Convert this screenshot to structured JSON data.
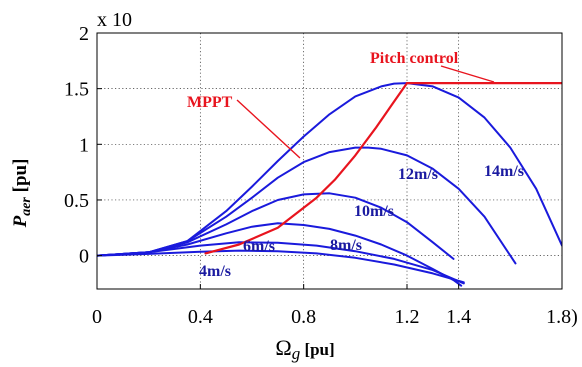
{
  "chart_data": {
    "type": "line",
    "title": "",
    "multiplier": "x 10",
    "xlabel": {
      "main": "Ω",
      "sub": "g",
      "unit": " [pu]"
    },
    "ylabel": {
      "main": "P",
      "sub": "aer",
      "unit": " [pu]"
    },
    "xlim": [
      0,
      1.8
    ],
    "ylim": [
      -0.3,
      2
    ],
    "xticks": [
      "0",
      "0.4",
      "0.8",
      "1.2",
      "1.4",
      "1.8)"
    ],
    "xtick_values": [
      0,
      0.4,
      0.8,
      1.2,
      1.4,
      1.8
    ],
    "yticks": [
      "0",
      "0.5",
      "1",
      "1.5",
      "2"
    ],
    "ytick_values": [
      0,
      0.5,
      1,
      1.5,
      2
    ],
    "grid": true,
    "colors": {
      "turbine": "#1a1adc",
      "mppt": "#e8141e",
      "pitch": "#e8141e",
      "label_blue": "#1a1aa0",
      "label_red": "#e8141e"
    },
    "series": [
      {
        "name": "4m/s",
        "x": [
          0,
          0.2,
          0.4,
          0.55,
          0.7,
          0.85,
          1.0,
          1.15,
          1.3,
          1.42
        ],
        "y": [
          0,
          0.015,
          0.035,
          0.045,
          0.04,
          0.02,
          -0.02,
          -0.08,
          -0.16,
          -0.24
        ]
      },
      {
        "name": "6m/s",
        "x": [
          0,
          0.2,
          0.4,
          0.55,
          0.7,
          0.85,
          1.0,
          1.15,
          1.3,
          1.42
        ],
        "y": [
          0,
          0.03,
          0.09,
          0.12,
          0.115,
          0.09,
          0.04,
          -0.03,
          -0.13,
          -0.25
        ]
      },
      {
        "name": "8m/s",
        "x": [
          0,
          0.2,
          0.35,
          0.5,
          0.6,
          0.7,
          0.8,
          0.9,
          1.0,
          1.1,
          1.2,
          1.3,
          1.38,
          1.41
        ],
        "y": [
          0,
          0.03,
          0.1,
          0.2,
          0.26,
          0.29,
          0.275,
          0.24,
          0.18,
          0.1,
          0.0,
          -0.12,
          -0.22,
          -0.27
        ]
      },
      {
        "name": "10m/s",
        "x": [
          0,
          0.2,
          0.35,
          0.5,
          0.6,
          0.7,
          0.8,
          0.9,
          1.0,
          1.1,
          1.2,
          1.3,
          1.38
        ],
        "y": [
          0,
          0.03,
          0.12,
          0.28,
          0.4,
          0.5,
          0.55,
          0.56,
          0.52,
          0.43,
          0.3,
          0.12,
          -0.03
        ]
      },
      {
        "name": "12m/s",
        "x": [
          0,
          0.2,
          0.35,
          0.5,
          0.6,
          0.7,
          0.8,
          0.9,
          1.0,
          1.05,
          1.1,
          1.2,
          1.3,
          1.4,
          1.5,
          1.6,
          1.62
        ],
        "y": [
          0,
          0.03,
          0.13,
          0.35,
          0.52,
          0.7,
          0.84,
          0.93,
          0.97,
          0.97,
          0.96,
          0.9,
          0.78,
          0.6,
          0.35,
          0.0,
          -0.07
        ]
      },
      {
        "name": "14m/s",
        "x": [
          0,
          0.2,
          0.35,
          0.5,
          0.6,
          0.7,
          0.8,
          0.9,
          1.0,
          1.1,
          1.15,
          1.2,
          1.3,
          1.4,
          1.5,
          1.6,
          1.7,
          1.8
        ],
        "y": [
          0,
          0.03,
          0.13,
          0.4,
          0.62,
          0.85,
          1.07,
          1.27,
          1.43,
          1.52,
          1.545,
          1.55,
          1.52,
          1.42,
          1.24,
          0.97,
          0.6,
          0.09
        ]
      },
      {
        "name": "MPPT",
        "x": [
          0.42,
          0.55,
          0.7,
          0.85,
          0.92,
          1.0,
          1.08,
          1.14,
          1.2
        ],
        "y": [
          0.02,
          0.1,
          0.25,
          0.52,
          0.68,
          0.9,
          1.15,
          1.35,
          1.55
        ]
      },
      {
        "name": "Pitch control",
        "x": [
          1.2,
          1.8
        ],
        "y": [
          1.55,
          1.55
        ]
      }
    ],
    "annotations": [
      {
        "text": "Pitch control",
        "color": "red"
      },
      {
        "text": "MPPT",
        "color": "red"
      },
      {
        "text": "14m/s",
        "color": "blue"
      },
      {
        "text": "12m/s",
        "color": "blue"
      },
      {
        "text": "10m/s",
        "color": "blue"
      },
      {
        "text": "8m/s",
        "color": "blue"
      },
      {
        "text": "6m/s",
        "color": "blue"
      },
      {
        "text": "4m/s",
        "color": "blue"
      }
    ]
  }
}
